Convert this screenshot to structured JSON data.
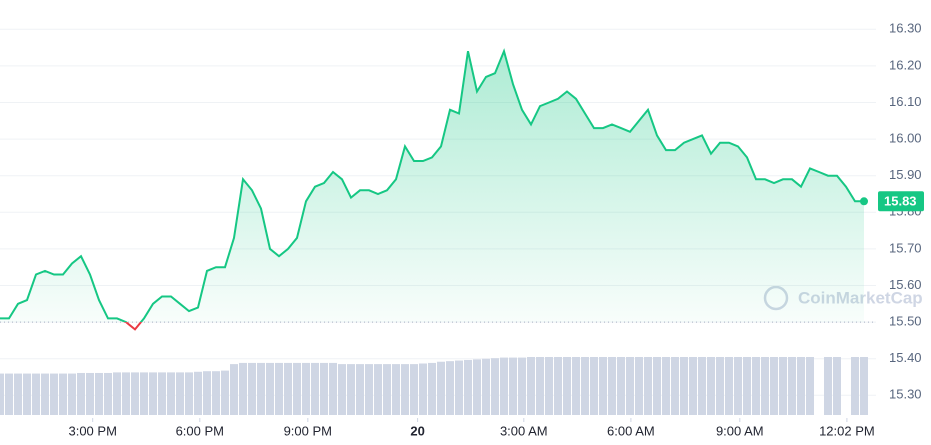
{
  "chart_data": {
    "type": "line",
    "series": [
      {
        "name": "Price",
        "color": "#16c784",
        "down_color": "#ea3943",
        "values": [
          15.51,
          15.51,
          15.55,
          15.56,
          15.63,
          15.64,
          15.63,
          15.63,
          15.66,
          15.68,
          15.63,
          15.56,
          15.51,
          15.51,
          15.5,
          15.48,
          15.51,
          15.55,
          15.57,
          15.57,
          15.55,
          15.53,
          15.54,
          15.64,
          15.65,
          15.65,
          15.73,
          15.89,
          15.86,
          15.81,
          15.7,
          15.68,
          15.7,
          15.73,
          15.83,
          15.87,
          15.88,
          15.91,
          15.89,
          15.84,
          15.86,
          15.86,
          15.85,
          15.86,
          15.89,
          15.98,
          15.94,
          15.94,
          15.95,
          15.98,
          16.08,
          16.07,
          16.24,
          16.13,
          16.17,
          16.18,
          16.24,
          16.15,
          16.08,
          16.04,
          16.09,
          16.1,
          16.11,
          16.13,
          16.11,
          16.07,
          16.03,
          16.03,
          16.04,
          16.03,
          16.02,
          16.05,
          16.08,
          16.01,
          15.97,
          15.97,
          15.99,
          16.0,
          16.01,
          15.96,
          15.99,
          15.99,
          15.98,
          15.95,
          15.89,
          15.89,
          15.88,
          15.89,
          15.89,
          15.87,
          15.92,
          15.91,
          15.9,
          15.9,
          15.87,
          15.83,
          15.83
        ]
      }
    ],
    "volume": {
      "color": "#cfd6e4",
      "values": [
        70,
        70,
        70,
        70,
        70,
        70,
        70,
        70,
        70,
        71,
        71,
        71,
        71,
        72,
        72,
        72,
        72,
        72,
        72,
        72,
        72,
        72,
        73,
        74,
        74,
        75,
        86,
        88,
        88,
        88,
        88,
        88,
        88,
        88,
        88,
        88,
        88,
        88,
        86,
        86,
        86,
        86,
        86,
        86,
        86,
        86,
        86,
        87,
        88,
        90,
        91,
        92,
        93,
        94,
        95,
        96,
        97,
        97,
        97,
        98,
        98,
        98,
        98,
        98,
        98,
        98,
        98,
        98,
        98,
        98,
        98,
        98,
        98,
        98,
        98,
        98,
        98,
        98,
        98,
        98,
        98,
        98,
        98,
        98,
        98,
        98,
        98,
        98,
        98,
        98,
        98,
        0,
        98,
        98,
        0,
        98,
        98
      ]
    },
    "baseline": 15.5,
    "current_price": 15.83,
    "watermark": "CoinMarketCap",
    "xlim": [
      0,
      96
    ],
    "xticks": [
      {
        "value": 10.3,
        "label": "3:00 PM"
      },
      {
        "value": 22.2,
        "label": "6:00 PM"
      },
      {
        "value": 34.2,
        "label": "9:00 PM"
      },
      {
        "value": 46.4,
        "label": "20"
      },
      {
        "value": 58.2,
        "label": "3:00 AM"
      },
      {
        "value": 70.1,
        "label": "6:00 AM"
      },
      {
        "value": 82.2,
        "label": "9:00 AM"
      },
      {
        "value": 94.1,
        "label": "12:02 PM"
      }
    ],
    "ylim": [
      15.25,
      16.38
    ],
    "yticks": [
      {
        "value": 15.3,
        "label": "15.30"
      },
      {
        "value": 15.4,
        "label": "15.40"
      },
      {
        "value": 15.5,
        "label": "15.50"
      },
      {
        "value": 15.6,
        "label": "15.60"
      },
      {
        "value": 15.7,
        "label": "15.70"
      },
      {
        "value": 15.8,
        "label": "15.80"
      },
      {
        "value": 15.9,
        "label": "15.90"
      },
      {
        "value": 16.0,
        "label": "16.00"
      },
      {
        "value": 16.1,
        "label": "16.10"
      },
      {
        "value": 16.2,
        "label": "16.20"
      },
      {
        "value": 16.3,
        "label": "16.30"
      }
    ],
    "grid": true
  }
}
